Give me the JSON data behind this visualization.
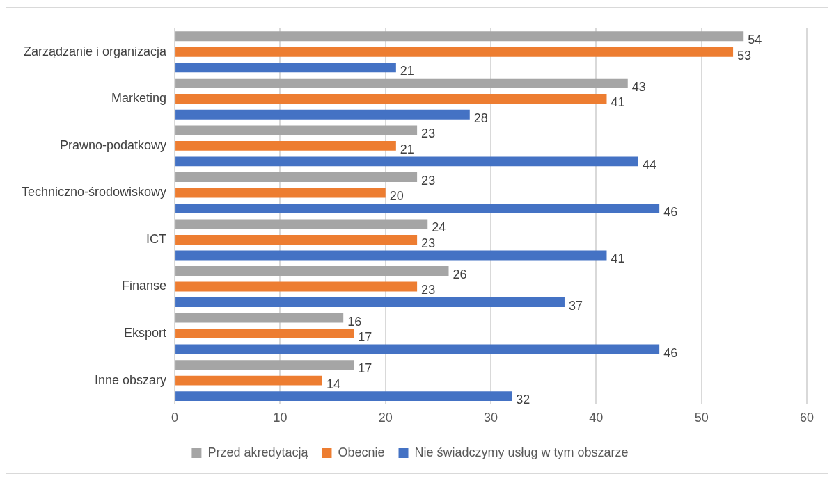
{
  "chart_data": {
    "type": "bar",
    "orientation": "horizontal",
    "categories": [
      "Zarządzanie i organizacja",
      "Marketing",
      "Prawno-podatkowy",
      "Techniczno-środowiskowy",
      "ICT",
      "Finanse",
      "Eksport",
      "Inne obszary"
    ],
    "series": [
      {
        "name": "Przed akredytacją",
        "color": "#a5a5a5",
        "values": [
          54,
          43,
          23,
          23,
          24,
          26,
          16,
          17
        ]
      },
      {
        "name": "Obecnie",
        "color": "#ed7d31",
        "values": [
          53,
          41,
          21,
          20,
          23,
          23,
          17,
          14
        ]
      },
      {
        "name": "Nie świadczymy usług w tym obszarze",
        "color": "#4472c4",
        "values": [
          21,
          28,
          44,
          46,
          41,
          37,
          46,
          32
        ]
      }
    ],
    "xlim": [
      0,
      60
    ],
    "xticks": [
      0,
      10,
      20,
      30,
      40,
      50,
      60
    ],
    "grid": "x",
    "legend": "bottom",
    "data_labels": true
  }
}
